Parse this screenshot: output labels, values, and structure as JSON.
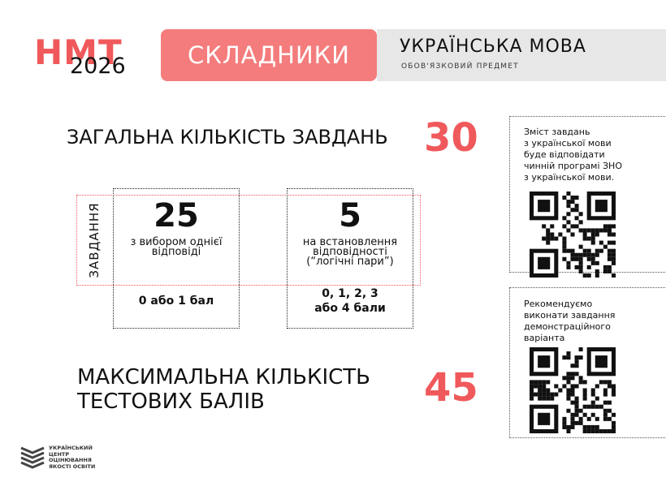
{
  "header": {
    "logo_top": "НМТ",
    "logo_year": "2026",
    "badge": "СКЛАДНИКИ",
    "subject": "УКРАЇНСЬКА МОВА",
    "subject_note": "ОБОВ'ЯЗКОВИЙ ПРЕДМЕТ"
  },
  "total": {
    "label": "ЗАГАЛЬНА КІЛЬКІСТЬ ЗАВДАНЬ",
    "value": 30
  },
  "tasks": {
    "label": "ЗАВДАННЯ",
    "groups": [
      {
        "count": 25,
        "lines": [
          "з вибором однієї",
          "відповіді"
        ],
        "score_lines": [
          "0 або 1 бал"
        ]
      },
      {
        "count": 5,
        "lines": [
          "на встановлення",
          "відповідності",
          "(“логічні пари”)"
        ],
        "score_lines": [
          "0, 1, 2, 3",
          "або 4 бали"
        ]
      }
    ]
  },
  "max_score": {
    "lines": [
      "МАКСИМАЛЬНА КІЛЬКІСТЬ",
      "ТЕСТОВИХ БАЛІВ"
    ],
    "value": 45
  },
  "notes": [
    {
      "lines": [
        "Зміст завдань",
        "з української мови",
        "буде відповідати",
        "чинній програмі ЗНО",
        "з української мови."
      ]
    },
    {
      "lines": [
        "Рекомендуємо",
        "виконати завдання",
        "демонстраційного",
        "варіанта"
      ]
    }
  ],
  "footer": {
    "lines": [
      "УКРАЇНСЬКИЙ",
      "ЦЕНТР",
      "ОЦІНЮВАННЯ",
      "ЯКОСТІ ОСВІТИ"
    ]
  }
}
